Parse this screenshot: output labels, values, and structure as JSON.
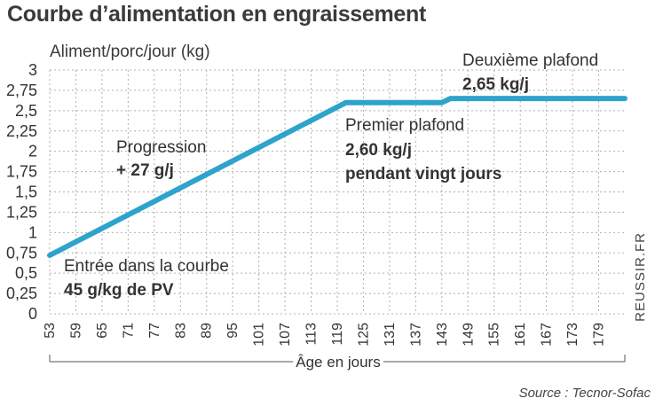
{
  "title": "Courbe d’alimentation en engraissement",
  "source": "Source : Tecnor-Sofac",
  "brand": "REUSSIR.FR",
  "colors": {
    "line": "#2ea3cc",
    "grid": "#b0b0b0",
    "text": "#333333"
  },
  "chart_data": {
    "type": "line",
    "title": "Courbe d’alimentation en engraissement",
    "ylabel": "Aliment/porc/jour (kg)",
    "xlabel": "Âge en jours",
    "ylim": [
      0,
      3
    ],
    "xlim": [
      53,
      185
    ],
    "y_ticks": [
      "0",
      "0,25",
      "0,5",
      "0,75",
      "1",
      "1,25",
      "1,5",
      "1,75",
      "2",
      "2,25",
      "2,5",
      "2,75",
      "3"
    ],
    "y_tick_values": [
      0,
      0.25,
      0.5,
      0.75,
      1,
      1.25,
      1.5,
      1.75,
      2,
      2.25,
      2.5,
      2.75,
      3
    ],
    "x_ticks": [
      53,
      59,
      65,
      71,
      77,
      83,
      89,
      95,
      101,
      107,
      113,
      119,
      125,
      131,
      137,
      143,
      149,
      155,
      161,
      167,
      173,
      179
    ],
    "grid": true,
    "series": [
      {
        "name": "Aliment/porc/jour",
        "x": [
          53,
          121,
          143,
          145,
          185
        ],
        "y": [
          0.72,
          2.6,
          2.6,
          2.65,
          2.65
        ]
      }
    ],
    "annotations": [
      {
        "id": "entree",
        "line1": "Entrée dans la courbe",
        "line2": "45 g/kg de PV"
      },
      {
        "id": "progression",
        "line1": "Progression",
        "line2": "+ 27 g/j"
      },
      {
        "id": "plafond1",
        "line1": "Premier plafond",
        "line2": "2,60 kg/j",
        "line3": "pendant vingt jours"
      },
      {
        "id": "plafond2",
        "line1": "Deuxième plafond",
        "line2": "2,65 kg/j"
      }
    ]
  }
}
